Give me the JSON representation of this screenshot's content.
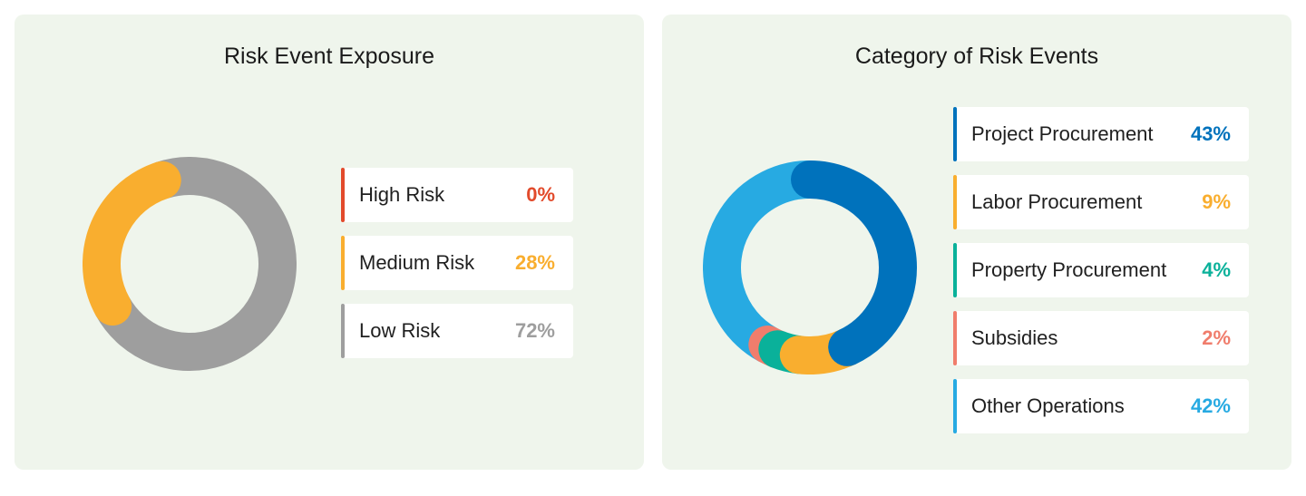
{
  "chart_data": [
    {
      "type": "pie",
      "title": "Risk Event Exposure",
      "categories": [
        "High Risk",
        "Medium Risk",
        "Low Risk"
      ],
      "values": [
        0,
        28,
        72
      ],
      "labels": [
        "0%",
        "28%",
        "72%"
      ],
      "colors": [
        "#e24a2b",
        "#f9ae2f",
        "#9e9e9e"
      ],
      "style": "donut",
      "legend": "right"
    },
    {
      "type": "pie",
      "title": "Category of Risk Events",
      "categories": [
        "Project Procurement",
        "Labor Procurement",
        "Property Procurement",
        "Subsidies",
        "Other Operations"
      ],
      "values": [
        43,
        9,
        4,
        2,
        42
      ],
      "labels": [
        "43%",
        "9%",
        "4%",
        "2%",
        "42%"
      ],
      "colors": [
        "#0072bc",
        "#f9ae2f",
        "#0ab19a",
        "#f07d6c",
        "#27aae2"
      ],
      "style": "donut",
      "legend": "right"
    }
  ]
}
